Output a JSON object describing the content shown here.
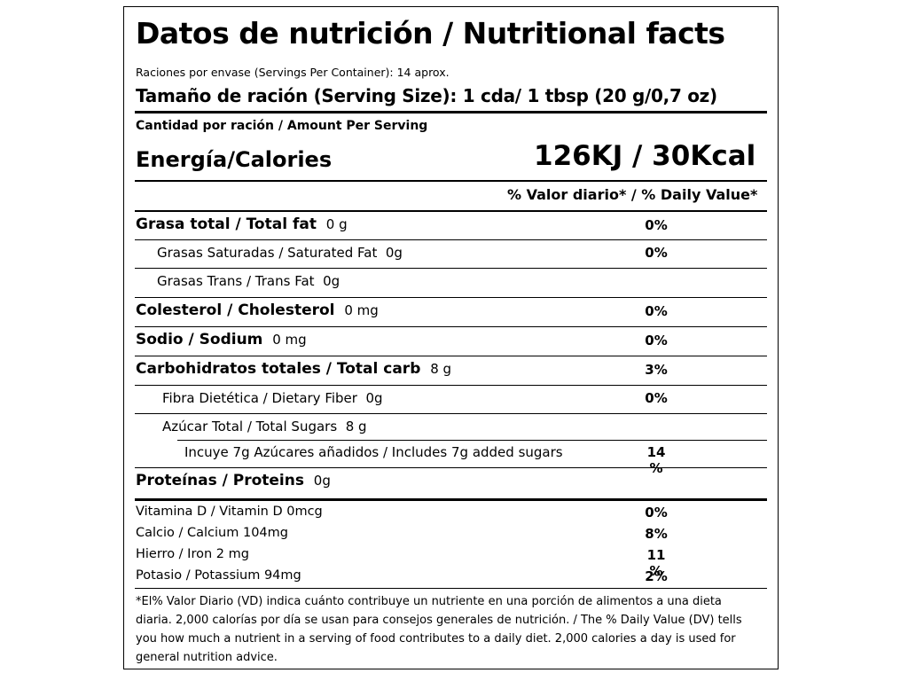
{
  "title": "Datos de nutrición / Nutritional facts",
  "servings": "Raciones por envase (Servings Per Container): 14 aprox.",
  "serving_size": "Tamaño de ración (Serving Size): 1 cda/ 1 tbsp (20 g/0,7 oz)",
  "amount_per_serving": "Cantidad por ración / Amount Per Serving",
  "energy_label": "Energía/Calories",
  "energy_value": "126KJ / 30Kcal",
  "dv_header": "% Valor diario* / % Daily Value*",
  "nutrients": [
    {
      "name": "Grasa total / Total fat",
      "amount": "0 g",
      "dv": "0%"
    },
    {
      "name": "Grasas Saturadas / Saturated Fat",
      "amount": "0g",
      "dv": "0%"
    },
    {
      "name": "Grasas Trans / Trans Fat",
      "amount": "0g",
      "dv": ""
    },
    {
      "name": "Colesterol / Cholesterol",
      "amount": "0 mg",
      "dv": "0%"
    },
    {
      "name": "Sodio / Sodium",
      "amount": "0 mg",
      "dv": "0%"
    },
    {
      "name": "Carbohidratos totales / Total carb",
      "amount": "8 g",
      "dv": "3%"
    },
    {
      "name": "Fibra Dietética / Dietary Fiber",
      "amount": "0g",
      "dv": "0%"
    },
    {
      "name": "Azúcar Total / Total Sugars",
      "amount": "8 g",
      "dv": ""
    },
    {
      "name": "Incuye 7g Azúcares añadidos / Includes 7g added sugars",
      "amount": "",
      "dv": "14 %"
    },
    {
      "name": "Proteínas / Proteins",
      "amount": "0g",
      "dv": ""
    }
  ],
  "vitamins": [
    {
      "name": "Vitamina D / Vitamin D 0mcg",
      "dv": "0%"
    },
    {
      "name": "Calcio / Calcium 104mg",
      "dv": "8%"
    },
    {
      "name": "Hierro / Iron 2 mg",
      "dv": "11 %"
    },
    {
      "name": "Potasio / Potassium 94mg",
      "dv": "2%"
    }
  ],
  "footnote": "*El% Valor Diario (VD) indica cuánto contribuye un nutriente en una porción de alimentos a una dieta diaria. 2,000 calorías por día se usan para consejos generales de nutrición. / The % Daily Value (DV) tells you how much a nutrient in a serving of food contributes to a daily diet. 2,000 calories a day is used for general nutrition advice."
}
